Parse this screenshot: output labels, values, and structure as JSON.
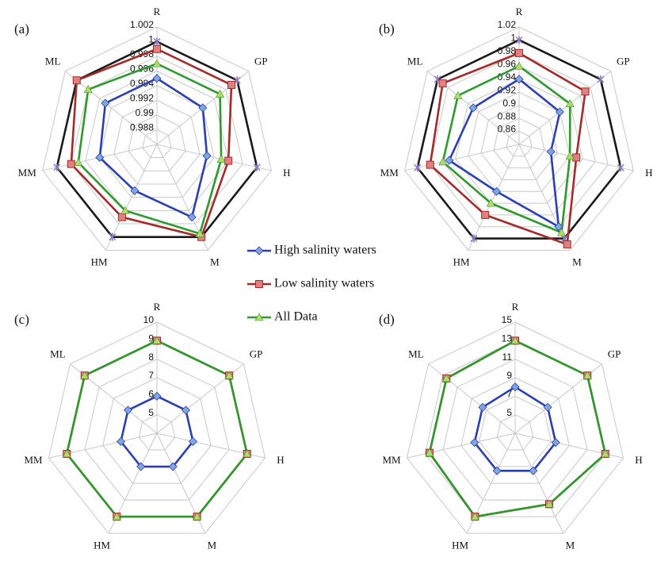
{
  "chart_data": [
    {
      "type": "radar",
      "label": "(a)",
      "categories": [
        "R",
        "GP",
        "H",
        "M",
        "HM",
        "MM",
        "ML"
      ],
      "rlim": [
        0.986,
        1.002
      ],
      "rticks": [
        0.988,
        0.99,
        0.992,
        0.994,
        0.996,
        0.998,
        {
          "value": 1,
          "label": "1"
        },
        1.002
      ],
      "series": [
        {
          "color": "#1a1a1a",
          "marker": "star",
          "marker_color": "#8e7cc3",
          "values": [
            1,
            1,
            1,
            1,
            1,
            1,
            1
          ]
        },
        {
          "name": "High salinity waters",
          "color": "#2a3fb0",
          "marker": "diamond",
          "marker_color": "#7fa7dd",
          "values": [
            0.995,
            0.994,
            0.993,
            0.997,
            0.993,
            0.994,
            0.995
          ]
        },
        {
          "name": "Low salinity waters",
          "color": "#a52a2a",
          "marker": "square",
          "marker_color": "#e08080",
          "values": [
            0.999,
            0.999,
            0.996,
            1,
            0.997,
            0.998,
            1
          ]
        },
        {
          "name": "All Data",
          "color": "#2e9a2e",
          "marker": "triangle",
          "marker_color": "#b8d86a",
          "values": [
            0.997,
            0.997,
            0.995,
            0.9995,
            0.996,
            0.997,
            0.998
          ]
        }
      ]
    },
    {
      "type": "radar",
      "label": "(b)",
      "categories": [
        "R",
        "GP",
        "H",
        "M",
        "HM",
        "MM",
        "ML"
      ],
      "rlim": [
        0.84,
        1.02
      ],
      "rticks": [
        0.86,
        0.88,
        0.9,
        0.92,
        0.94,
        0.96,
        0.98,
        1,
        1.02
      ],
      "series": [
        {
          "color": "#1a1a1a",
          "marker": "star",
          "marker_color": "#8e7cc3",
          "values": [
            1,
            1,
            1,
            1,
            1,
            1,
            1
          ]
        },
        {
          "color": "#2a3fb0",
          "marker": "diamond",
          "marker_color": "#7fa7dd",
          "values": [
            0.94,
            0.92,
            0.89,
            0.98,
            0.92,
            0.95,
            0.93
          ]
        },
        {
          "color": "#a52a2a",
          "marker": "square",
          "marker_color": "#e08080",
          "values": [
            0.98,
            0.97,
            0.93,
            1.01,
            0.96,
            0.98,
            0.99
          ]
        },
        {
          "color": "#2e9a2e",
          "marker": "triangle",
          "marker_color": "#b8d86a",
          "values": [
            0.96,
            0.94,
            0.92,
            0.99,
            0.94,
            0.96,
            0.96
          ]
        }
      ]
    },
    {
      "type": "radar",
      "label": "(c)",
      "categories": [
        "R",
        "GP",
        "H",
        "M",
        "HM",
        "MM",
        "ML"
      ],
      "rlim": [
        4,
        10
      ],
      "rticks": [
        5,
        6,
        7,
        8,
        9,
        10
      ],
      "series": [
        {
          "color": "#2a3fb0",
          "marker": "diamond",
          "marker_color": "#7fa7dd",
          "values": [
            6,
            6,
            6,
            6,
            6,
            6,
            6
          ]
        },
        {
          "color": "#a52a2a",
          "marker": "square",
          "marker_color": "#e08080",
          "values": [
            9,
            9,
            9,
            9,
            9,
            9,
            9
          ]
        },
        {
          "color": "#2e9a2e",
          "marker": "triangle",
          "marker_color": "#b8d86a",
          "values": [
            9,
            9,
            9,
            9,
            9,
            9,
            9
          ]
        }
      ]
    },
    {
      "type": "radar",
      "label": "(d)",
      "categories": [
        "R",
        "GP",
        "H",
        "M",
        "HM",
        "MM",
        "ML"
      ],
      "rlim": [
        3,
        15
      ],
      "rticks": [
        5,
        7,
        9,
        11,
        13,
        15
      ],
      "series": [
        {
          "color": "#2a3fb0",
          "marker": "diamond",
          "marker_color": "#7fa7dd",
          "values": [
            8,
            7.5,
            7.5,
            7.5,
            7.5,
            7.5,
            7.5
          ]
        },
        {
          "color": "#a52a2a",
          "marker": "square",
          "marker_color": "#e08080",
          "values": [
            13,
            13,
            13,
            11.5,
            13,
            12.5,
            12.5
          ]
        },
        {
          "color": "#2e9a2e",
          "marker": "triangle",
          "marker_color": "#b8d86a",
          "values": [
            13,
            13,
            13,
            11.5,
            13,
            12.5,
            12.5
          ]
        }
      ]
    }
  ]
}
